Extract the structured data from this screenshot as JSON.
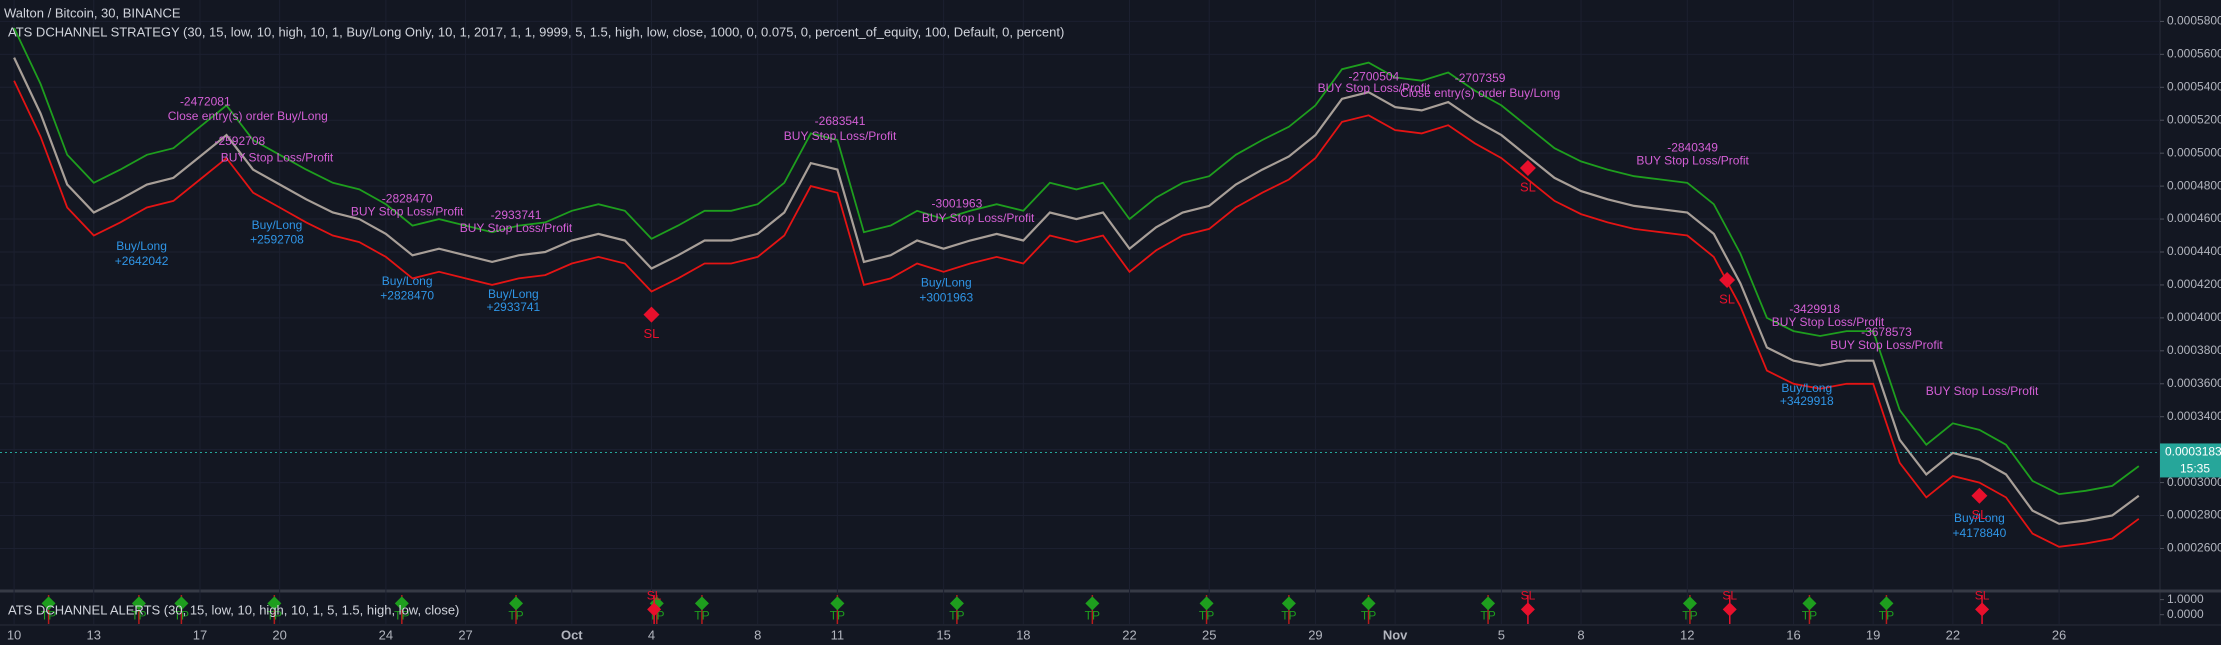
{
  "chart_data": {
    "type": "line",
    "title": "Walton / Bitcoin, 30, BINANCE",
    "subtitle": "ATS DCHANNEL STRATEGY (30, 15, low, 10, high, 10, 1, Buy/Long Only, 10, 1, 2017, 1, 1, 9999, 5, 1.5, high, low, close, 1000, 0, 0.075, 0, percent_of_equity, 100, Default, 0, percent)",
    "xlim": [
      -0.53,
      80.8
    ],
    "xticks": [
      {
        "value": 0,
        "label": "10"
      },
      {
        "value": 3,
        "label": "13"
      },
      {
        "value": 7,
        "label": "17"
      },
      {
        "value": 10,
        "label": "20"
      },
      {
        "value": 14,
        "label": "24"
      },
      {
        "value": 17,
        "label": "27"
      },
      {
        "value": 21,
        "label": "Oct"
      },
      {
        "value": 24,
        "label": "4"
      },
      {
        "value": 28,
        "label": "8"
      },
      {
        "value": 31,
        "label": "11"
      },
      {
        "value": 35,
        "label": "15"
      },
      {
        "value": 38,
        "label": "18"
      },
      {
        "value": 42,
        "label": "22"
      },
      {
        "value": 45,
        "label": "25"
      },
      {
        "value": 49,
        "label": "29"
      },
      {
        "value": 52,
        "label": "Nov"
      },
      {
        "value": 56,
        "label": "5"
      },
      {
        "value": 59,
        "label": "8"
      },
      {
        "value": 63,
        "label": "12"
      },
      {
        "value": 67,
        "label": "16"
      },
      {
        "value": 70,
        "label": "19"
      },
      {
        "value": 73,
        "label": "22"
      },
      {
        "value": 77,
        "label": "26"
      }
    ],
    "ylim": [
      0.000236,
      0.000593
    ],
    "yticks": [
      {
        "value": 0.00058,
        "label": "0.0005800"
      },
      {
        "value": 0.00056,
        "label": "0.0005600"
      },
      {
        "value": 0.00054,
        "label": "0.0005400"
      },
      {
        "value": 0.00052,
        "label": "0.0005200"
      },
      {
        "value": 0.0005,
        "label": "0.0005000"
      },
      {
        "value": 0.00048,
        "label": "0.0004800"
      },
      {
        "value": 0.00046,
        "label": "0.0004600"
      },
      {
        "value": 0.00044,
        "label": "0.0004400"
      },
      {
        "value": 0.00042,
        "label": "0.0004200"
      },
      {
        "value": 0.0004,
        "label": "0.0004000"
      },
      {
        "value": 0.00038,
        "label": "0.0003800"
      },
      {
        "value": 0.00036,
        "label": "0.0003600"
      },
      {
        "value": 0.00034,
        "label": "0.0003400"
      },
      {
        "value": 0.00032,
        "label": "0.0003200"
      },
      {
        "value": 0.0003,
        "label": "0.0003000"
      },
      {
        "value": 0.00028,
        "label": "0.0002800"
      },
      {
        "value": 0.00026,
        "label": "0.0002600"
      }
    ],
    "grid": true,
    "series": [
      {
        "color": "#a89f98",
        "values": [
          0.000558,
          0.000524,
          0.000481,
          0.000464,
          0.000472,
          0.000481,
          0.000485,
          0.000498,
          0.000511,
          0.00049,
          0.000481,
          0.000472,
          0.000464,
          0.00046,
          0.000451,
          0.000438,
          0.000442,
          0.000438,
          0.000434,
          0.000438,
          0.00044,
          0.000447,
          0.000451,
          0.000447,
          0.00043,
          0.000438,
          0.000447,
          0.000447,
          0.000451,
          0.000464,
          0.000494,
          0.00049,
          0.000434,
          0.000438,
          0.000447,
          0.000442,
          0.000447,
          0.000451,
          0.000447,
          0.000464,
          0.00046,
          0.000464,
          0.000442,
          0.000455,
          0.000464,
          0.000468,
          0.000481,
          0.00049,
          0.000498,
          0.000511,
          0.000533,
          0.000537,
          0.000528,
          0.000526,
          0.000531,
          0.00052,
          0.000511,
          0.000498,
          0.000485,
          0.000477,
          0.000472,
          0.000468,
          0.000466,
          0.000464,
          0.000451,
          0.000421,
          0.000382,
          0.000374,
          0.000371,
          0.000374,
          0.000374,
          0.000326,
          0.000305,
          0.000318,
          0.000314,
          0.000305,
          0.000283,
          0.000275,
          0.000277,
          0.00028,
          0.000292
        ]
      },
      {
        "color": "#1e9e1e",
        "values": [
          0.000576,
          0.000542,
          0.000499,
          0.000482,
          0.00049,
          0.000499,
          0.000503,
          0.000516,
          0.000529,
          0.000508,
          0.000499,
          0.00049,
          0.000482,
          0.000478,
          0.000469,
          0.000456,
          0.00046,
          0.000456,
          0.000452,
          0.000456,
          0.000458,
          0.000465,
          0.000469,
          0.000465,
          0.000448,
          0.000456,
          0.000465,
          0.000465,
          0.000469,
          0.000482,
          0.000512,
          0.000508,
          0.000452,
          0.000456,
          0.000465,
          0.00046,
          0.000465,
          0.000469,
          0.000465,
          0.000482,
          0.000478,
          0.000482,
          0.00046,
          0.000473,
          0.000482,
          0.000486,
          0.000499,
          0.000508,
          0.000516,
          0.000529,
          0.000551,
          0.000555,
          0.000546,
          0.000544,
          0.000549,
          0.000538,
          0.000529,
          0.000516,
          0.000503,
          0.000495,
          0.00049,
          0.000486,
          0.000484,
          0.000482,
          0.000469,
          0.000439,
          0.0004,
          0.000392,
          0.000389,
          0.000392,
          0.000392,
          0.000344,
          0.000323,
          0.000336,
          0.000332,
          0.000323,
          0.000301,
          0.000293,
          0.000295,
          0.000298,
          0.00031
        ]
      },
      {
        "color": "#e41414",
        "values": [
          0.000544,
          0.00051,
          0.000467,
          0.00045,
          0.000458,
          0.000467,
          0.000471,
          0.000484,
          0.000497,
          0.000476,
          0.000467,
          0.000458,
          0.00045,
          0.000446,
          0.000437,
          0.000424,
          0.000428,
          0.000424,
          0.00042,
          0.000424,
          0.000426,
          0.000433,
          0.000437,
          0.000433,
          0.000416,
          0.000424,
          0.000433,
          0.000433,
          0.000437,
          0.00045,
          0.00048,
          0.000476,
          0.00042,
          0.000424,
          0.000433,
          0.000428,
          0.000433,
          0.000437,
          0.000433,
          0.00045,
          0.000446,
          0.00045,
          0.000428,
          0.000441,
          0.00045,
          0.000454,
          0.000467,
          0.000476,
          0.000484,
          0.000497,
          0.000519,
          0.000523,
          0.000514,
          0.000512,
          0.000517,
          0.000506,
          0.000497,
          0.000484,
          0.000471,
          0.000463,
          0.000458,
          0.000454,
          0.000452,
          0.00045,
          0.000437,
          0.000407,
          0.000368,
          0.00036,
          0.000357,
          0.00036,
          0.00036,
          0.000312,
          0.000291,
          0.000304,
          0.0003,
          0.000291,
          0.000269,
          0.000261,
          0.000263,
          0.000266,
          0.000278
        ]
      }
    ],
    "last_price": {
      "value": 0.0003183,
      "label": "0.0003183"
    },
    "countdown": "15:35",
    "exit_labels": {
      "color": "#d45fd6",
      "items": [
        {
          "text": "-2472081",
          "x": 7.2,
          "y": 0.000531
        },
        {
          "text": "Close entry(s) order Buy/Long",
          "x": 8.8,
          "y": 0.000522
        },
        {
          "text": "-2592708",
          "x": 8.5,
          "y": 0.000507
        },
        {
          "text": "BUY Stop Loss/Profit",
          "x": 9.9,
          "y": 0.000497
        },
        {
          "text": "-2828470",
          "x": 14.8,
          "y": 0.000472
        },
        {
          "text": "BUY Stop Loss/Profit",
          "x": 14.8,
          "y": 0.000464
        },
        {
          "text": "-2933741",
          "x": 18.9,
          "y": 0.000462
        },
        {
          "text": "BUY Stop Loss/Profit",
          "x": 18.9,
          "y": 0.000454
        },
        {
          "text": "-2683541",
          "x": 31.1,
          "y": 0.000519
        },
        {
          "text": "BUY Stop Loss/Profit",
          "x": 31.1,
          "y": 0.00051
        },
        {
          "text": "-3001963",
          "x": 35.5,
          "y": 0.000469
        },
        {
          "text": "BUY Stop Loss/Profit",
          "x": 36.3,
          "y": 0.00046
        },
        {
          "text": "-2700504",
          "x": 51.2,
          "y": 0.000546
        },
        {
          "text": "BUY Stop Loss/Profit",
          "x": 51.2,
          "y": 0.000539
        },
        {
          "text": "-2707359",
          "x": 55.2,
          "y": 0.000545
        },
        {
          "text": "Close entry(s) order Buy/Long",
          "x": 55.2,
          "y": 0.000536
        },
        {
          "text": "-2840349",
          "x": 63.2,
          "y": 0.000503
        },
        {
          "text": "BUY Stop Loss/Profit",
          "x": 63.2,
          "y": 0.000495
        },
        {
          "text": "-3429918",
          "x": 67.8,
          "y": 0.000405
        },
        {
          "text": "BUY Stop Loss/Profit",
          "x": 68.3,
          "y": 0.000397
        },
        {
          "text": "-3678573",
          "x": 70.5,
          "y": 0.000391
        },
        {
          "text": "BUY Stop Loss/Profit",
          "x": 70.5,
          "y": 0.000383
        },
        {
          "text": "BUY Stop Loss/Profit",
          "x": 74.1,
          "y": 0.000355
        }
      ]
    },
    "entry_labels": {
      "color": "#2f95e6",
      "items": [
        {
          "text": "Buy/Long",
          "x": 4.8,
          "y": 0.000443
        },
        {
          "text": "+2642042",
          "x": 4.8,
          "y": 0.000434
        },
        {
          "text": "Buy/Long",
          "x": 9.9,
          "y": 0.000456
        },
        {
          "text": "+2592708",
          "x": 9.9,
          "y": 0.000447
        },
        {
          "text": "Buy/Long",
          "x": 14.8,
          "y": 0.000422
        },
        {
          "text": "+2828470",
          "x": 14.8,
          "y": 0.000413
        },
        {
          "text": "Buy/Long",
          "x": 18.8,
          "y": 0.000414
        },
        {
          "text": "+2933741",
          "x": 18.8,
          "y": 0.000406
        },
        {
          "text": "Buy/Long",
          "x": 35.1,
          "y": 0.000421
        },
        {
          "text": "+3001963",
          "x": 35.1,
          "y": 0.000412
        },
        {
          "text": "Buy/Long",
          "x": 67.5,
          "y": 0.000357
        },
        {
          "text": "+3429918",
          "x": 67.5,
          "y": 0.000349
        },
        {
          "text": "Buy/Long",
          "x": 74.0,
          "y": 0.000278
        },
        {
          "text": "+4178840",
          "x": 74.0,
          "y": 0.000269
        }
      ]
    },
    "sl_markers": {
      "color": "#e8102c",
      "text": "SL",
      "x": [
        24.0,
        57.0,
        64.5,
        74.0
      ],
      "values": [
        0.000402,
        0.000491,
        0.000423,
        0.000292
      ]
    },
    "alerts": {
      "title": "ATS DCHANNEL ALERTS (30, 15, low, 10, high, 10, 1, 5, 1.5, high, low, close)",
      "ylim": [
        -0.62,
        1.44
      ],
      "yticks": [
        {
          "value": 1,
          "label": "1.0000"
        },
        {
          "value": 0,
          "label": "0.0000"
        }
      ],
      "tp": {
        "color": "#1e9e1e",
        "text": "TP",
        "x": [
          1.3,
          4.7,
          6.3,
          9.8,
          14.6,
          18.9,
          24.2,
          25.9,
          31.0,
          35.5,
          40.6,
          44.9,
          48.0,
          51.0,
          55.5,
          63.1,
          67.6,
          70.5
        ]
      },
      "sl": {
        "color": "#e8102c",
        "text": "SL",
        "x": [
          24.1,
          57.0,
          64.6,
          74.1
        ]
      }
    }
  }
}
